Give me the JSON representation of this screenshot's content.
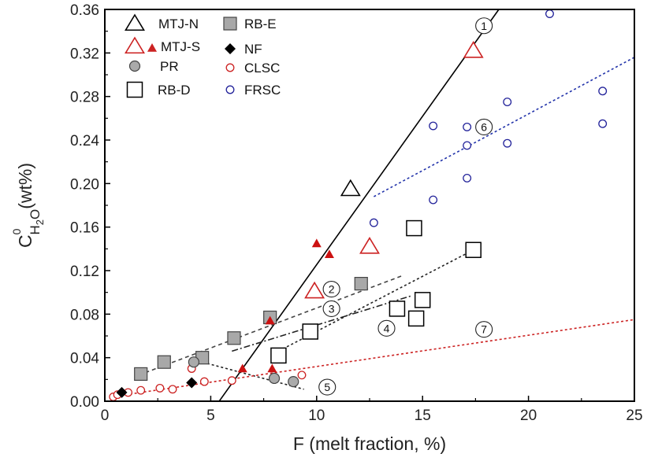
{
  "chart_data": {
    "type": "scatter",
    "xlabel": "F (melt fraction, %)",
    "ylabel": {
      "base": "C",
      "sup": "0",
      "sub": "H2O",
      "suffix": "(wt%)"
    },
    "xlim": [
      0,
      25
    ],
    "ylim": [
      0,
      0.36
    ],
    "xticks": [
      0,
      5,
      10,
      15,
      20,
      25
    ],
    "yticks": [
      0.0,
      0.04,
      0.08,
      0.12,
      0.16,
      0.2,
      0.24,
      0.28,
      0.32,
      0.36
    ],
    "ytick_labels": [
      "0.00",
      "0.04",
      "0.08",
      "0.12",
      "0.16",
      "0.20",
      "0.24",
      "0.28",
      "0.32",
      "0.36"
    ],
    "grid": false,
    "legend_placement": "top-left",
    "series": [
      {
        "name": "MTJ-N",
        "marker": "triangle-open",
        "color": "#000000",
        "points": [
          [
            11.6,
            0.195
          ]
        ]
      },
      {
        "name": "MTJ-S",
        "marker": "triangle-open",
        "color": "#cc2222",
        "points": [
          [
            9.9,
            0.101
          ],
          [
            12.5,
            0.142
          ],
          [
            17.4,
            0.322
          ]
        ]
      },
      {
        "name": "MTJ-S",
        "marker": "triangle-filled-small",
        "color": "#cc1111",
        "points": [
          [
            10.0,
            0.145
          ],
          [
            10.6,
            0.135
          ],
          [
            7.8,
            0.074
          ],
          [
            6.5,
            0.03
          ],
          [
            7.9,
            0.03
          ]
        ]
      },
      {
        "name": "PR",
        "marker": "circle-gray",
        "color": "#aaaaaa",
        "points": [
          [
            4.2,
            0.036
          ],
          [
            8.0,
            0.021
          ],
          [
            8.9,
            0.018
          ]
        ]
      },
      {
        "name": "RB-D",
        "marker": "square-open",
        "color": "#000000",
        "points": [
          [
            8.2,
            0.042
          ],
          [
            9.7,
            0.064
          ],
          [
            13.8,
            0.085
          ],
          [
            14.7,
            0.076
          ],
          [
            15.0,
            0.093
          ],
          [
            14.6,
            0.159
          ],
          [
            17.4,
            0.139
          ]
        ]
      },
      {
        "name": "RB-E",
        "marker": "square-gray",
        "color": "#aaaaaa",
        "points": [
          [
            1.7,
            0.025
          ],
          [
            2.8,
            0.036
          ],
          [
            4.6,
            0.04
          ],
          [
            6.1,
            0.058
          ],
          [
            7.8,
            0.077
          ],
          [
            12.1,
            0.108
          ]
        ]
      },
      {
        "name": "NF",
        "marker": "diamond",
        "color": "#000000",
        "points": [
          [
            0.8,
            0.008
          ],
          [
            4.1,
            0.017
          ]
        ]
      },
      {
        "name": "CLSC",
        "marker": "circle-open-small",
        "color": "#cc2222",
        "points": [
          [
            0.4,
            0.004
          ],
          [
            0.6,
            0.006
          ],
          [
            1.1,
            0.008
          ],
          [
            1.7,
            0.01
          ],
          [
            2.6,
            0.012
          ],
          [
            3.2,
            0.011
          ],
          [
            4.1,
            0.03
          ],
          [
            4.7,
            0.018
          ],
          [
            6.0,
            0.019
          ],
          [
            9.3,
            0.024
          ]
        ]
      },
      {
        "name": "FRSC",
        "marker": "circle-open-small",
        "color": "#22229a",
        "points": [
          [
            12.7,
            0.164
          ],
          [
            15.5,
            0.253
          ],
          [
            15.5,
            0.185
          ],
          [
            17.1,
            0.252
          ],
          [
            17.1,
            0.235
          ],
          [
            17.1,
            0.205
          ],
          [
            19.0,
            0.275
          ],
          [
            19.0,
            0.237
          ],
          [
            21.0,
            0.356
          ],
          [
            23.5,
            0.285
          ],
          [
            23.5,
            0.255
          ]
        ]
      }
    ],
    "lines": [
      {
        "label": "1",
        "style": "solid",
        "color": "#000000",
        "from": [
          5.4,
          0.0
        ],
        "to": [
          18.6,
          0.36
        ],
        "label_at": [
          17.9,
          0.345
        ]
      },
      {
        "label": "2",
        "style": "dashed",
        "color": "#444444",
        "from": [
          1.6,
          0.024
        ],
        "to": [
          14.0,
          0.115
        ],
        "label_at": [
          10.7,
          0.103
        ]
      },
      {
        "label": "3",
        "style": "dotted",
        "color": "#222222",
        "from": [
          8.0,
          0.044
        ],
        "to": [
          17.5,
          0.14
        ],
        "label_at": [
          10.7,
          0.085
        ]
      },
      {
        "label": "4",
        "style": "dashdot",
        "color": "#222222",
        "from": [
          6.0,
          0.046
        ],
        "to": [
          14.5,
          0.097
        ],
        "label_at": [
          13.3,
          0.067
        ]
      },
      {
        "label": "5",
        "style": "dotted",
        "color": "#222222",
        "from": [
          4.4,
          0.037
        ],
        "to": [
          9.4,
          0.011
        ],
        "label_at": [
          10.5,
          0.013
        ]
      },
      {
        "label": "6",
        "style": "dotted",
        "color": "#2233aa",
        "from": [
          12.7,
          0.188
        ],
        "to": [
          25.0,
          0.316
        ],
        "label_at": [
          17.9,
          0.252
        ]
      },
      {
        "label": "7",
        "style": "dotted",
        "color": "#cc2222",
        "from": [
          0.3,
          0.004
        ],
        "to": [
          25.0,
          0.075
        ],
        "label_at": [
          17.9,
          0.066
        ]
      }
    ],
    "legend": [
      {
        "label": "MTJ-N",
        "marker": "triangle-open",
        "color": "#000000"
      },
      {
        "label": "MTJ-S",
        "marker": "triangle-open+filled",
        "color": "#cc2222"
      },
      {
        "label": "PR",
        "marker": "circle-gray",
        "color": "#aaaaaa"
      },
      {
        "label": "RB-D",
        "marker": "square-open",
        "color": "#000000"
      },
      {
        "label": "RB-E",
        "marker": "square-gray",
        "color": "#aaaaaa"
      },
      {
        "label": "NF",
        "marker": "diamond",
        "color": "#000000"
      },
      {
        "label": "CLSC",
        "marker": "circle-open-small",
        "color": "#cc2222"
      },
      {
        "label": "FRSC",
        "marker": "circle-open-small",
        "color": "#22229a"
      }
    ]
  }
}
